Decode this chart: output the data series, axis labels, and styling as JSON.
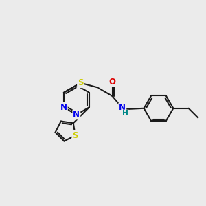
{
  "bg_color": "#ebebeb",
  "bond_color": "#1a1a1a",
  "bond_width": 1.5,
  "atom_colors": {
    "S": "#cccc00",
    "N": "#0000ee",
    "O": "#dd0000",
    "H": "#008888",
    "C": "#1a1a1a"
  },
  "font_size": 8.5,
  "fig_size": [
    3.0,
    3.0
  ],
  "dpi": 100,
  "xlim": [
    -4.2,
    5.8
  ],
  "ylim": [
    -2.8,
    2.8
  ]
}
